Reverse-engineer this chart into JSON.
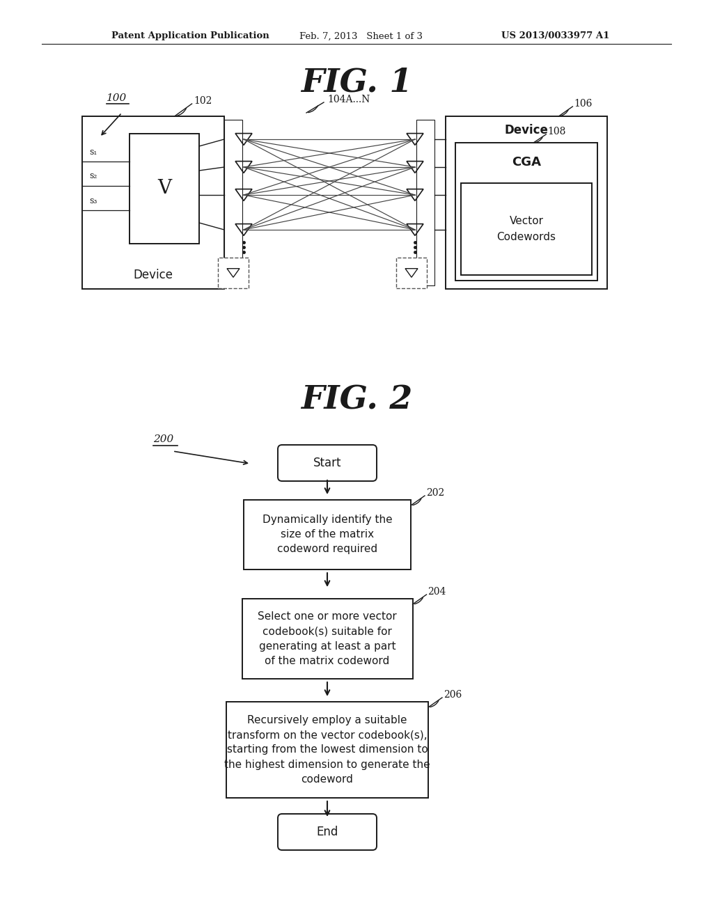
{
  "bg_color": "#ffffff",
  "text_color": "#000000",
  "header_left": "Patent Application Publication",
  "header_mid": "Feb. 7, 2013   Sheet 1 of 3",
  "header_right": "US 2013/0033977 A1",
  "fig1_title": "FIG. 1",
  "fig2_title": "FIG. 2",
  "label_100": "100",
  "label_102": "102",
  "label_104": "104A...N",
  "label_106": "106",
  "label_108": "108",
  "device_left": "Device",
  "device_right": "Device",
  "cga_text": "CGA",
  "vector_text": "Vector\nCodewords",
  "v_label": "V",
  "s1": "s₁",
  "s2": "s₂",
  "s3": "s₃",
  "label_200": "200",
  "start_text": "Start",
  "end_text": "End",
  "label_202": "202",
  "label_204": "204",
  "label_206": "206",
  "box202_text": "Dynamically identify the\nsize of the matrix\ncodeword required",
  "box204_text": "Select one or more vector\ncodebook(s) suitable for\ngenerating at least a part\nof the matrix codeword",
  "box206_text": "Recursively employ a suitable\ntransform on the vector codebook(s),\nstarting from the lowest dimension to\nthe highest dimension to generate the\ncodeword"
}
